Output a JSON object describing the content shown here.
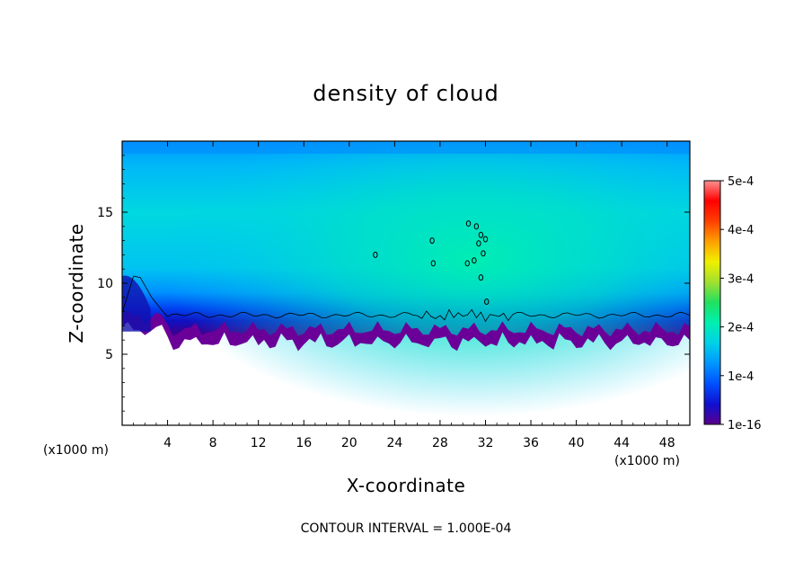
{
  "chart_data": {
    "type": "heatmap",
    "title": "density of cloud",
    "xlabel": "X-coordinate",
    "ylabel": "Z-coordinate",
    "x_unit_left": "(x1000 m)",
    "x_unit_right": "(x1000 m)",
    "xlim": [
      0,
      50
    ],
    "ylim": [
      0,
      20
    ],
    "xticks": [
      4,
      8,
      12,
      16,
      20,
      24,
      28,
      32,
      36,
      40,
      44,
      48
    ],
    "yticks": [
      5,
      10,
      15
    ],
    "colorbar": {
      "range": [
        0,
        0.0005
      ],
      "ticks": [
        {
          "value": 0.0,
          "label": "1e-16"
        },
        {
          "value": 0.0001,
          "label": "1e-4"
        },
        {
          "value": 0.0002,
          "label": "2e-4"
        },
        {
          "value": 0.0003,
          "label": "3e-4"
        },
        {
          "value": 0.0004,
          "label": "4e-4"
        },
        {
          "value": 0.0005,
          "label": "5e-4"
        }
      ],
      "colors": [
        "#5a008c",
        "#1010d0",
        "#0050ff",
        "#0096ff",
        "#00d0e8",
        "#00f0b0",
        "#20e060",
        "#a0e030",
        "#f0f000",
        "#ffa000",
        "#ff4000",
        "#ff0000",
        "#ff9090"
      ]
    },
    "cloud_base_z_km": 5.5,
    "contour_interval_label": "CONTOUR INTERVAL = 1.000E-04"
  }
}
